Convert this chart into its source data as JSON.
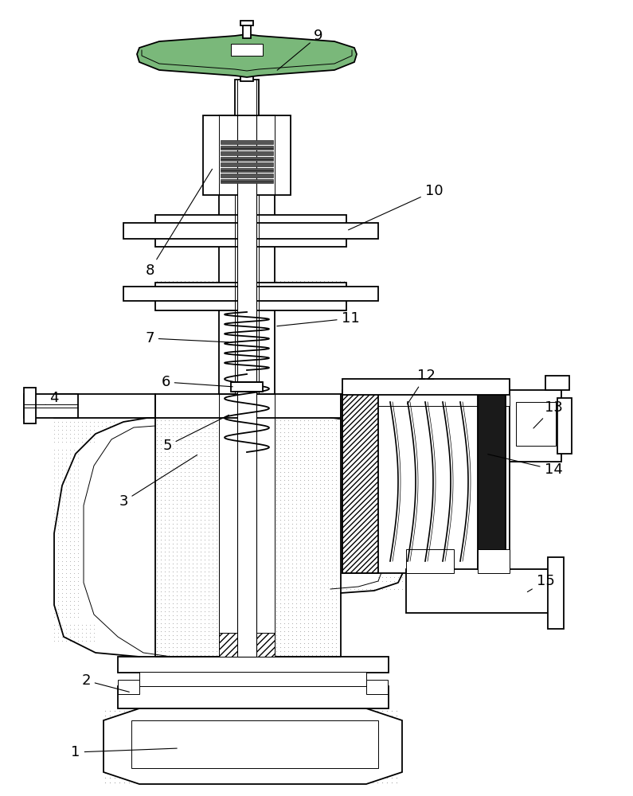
{
  "fig_width": 7.95,
  "fig_height": 10.0,
  "dpi": 100,
  "bg_color": "#ffffff",
  "lc": "#000000",
  "lw": 1.3,
  "lw_thin": 0.7,
  "stipple_color": "#aaaaaa",
  "green_color": "#7ab87a",
  "label_fontsize": 13
}
